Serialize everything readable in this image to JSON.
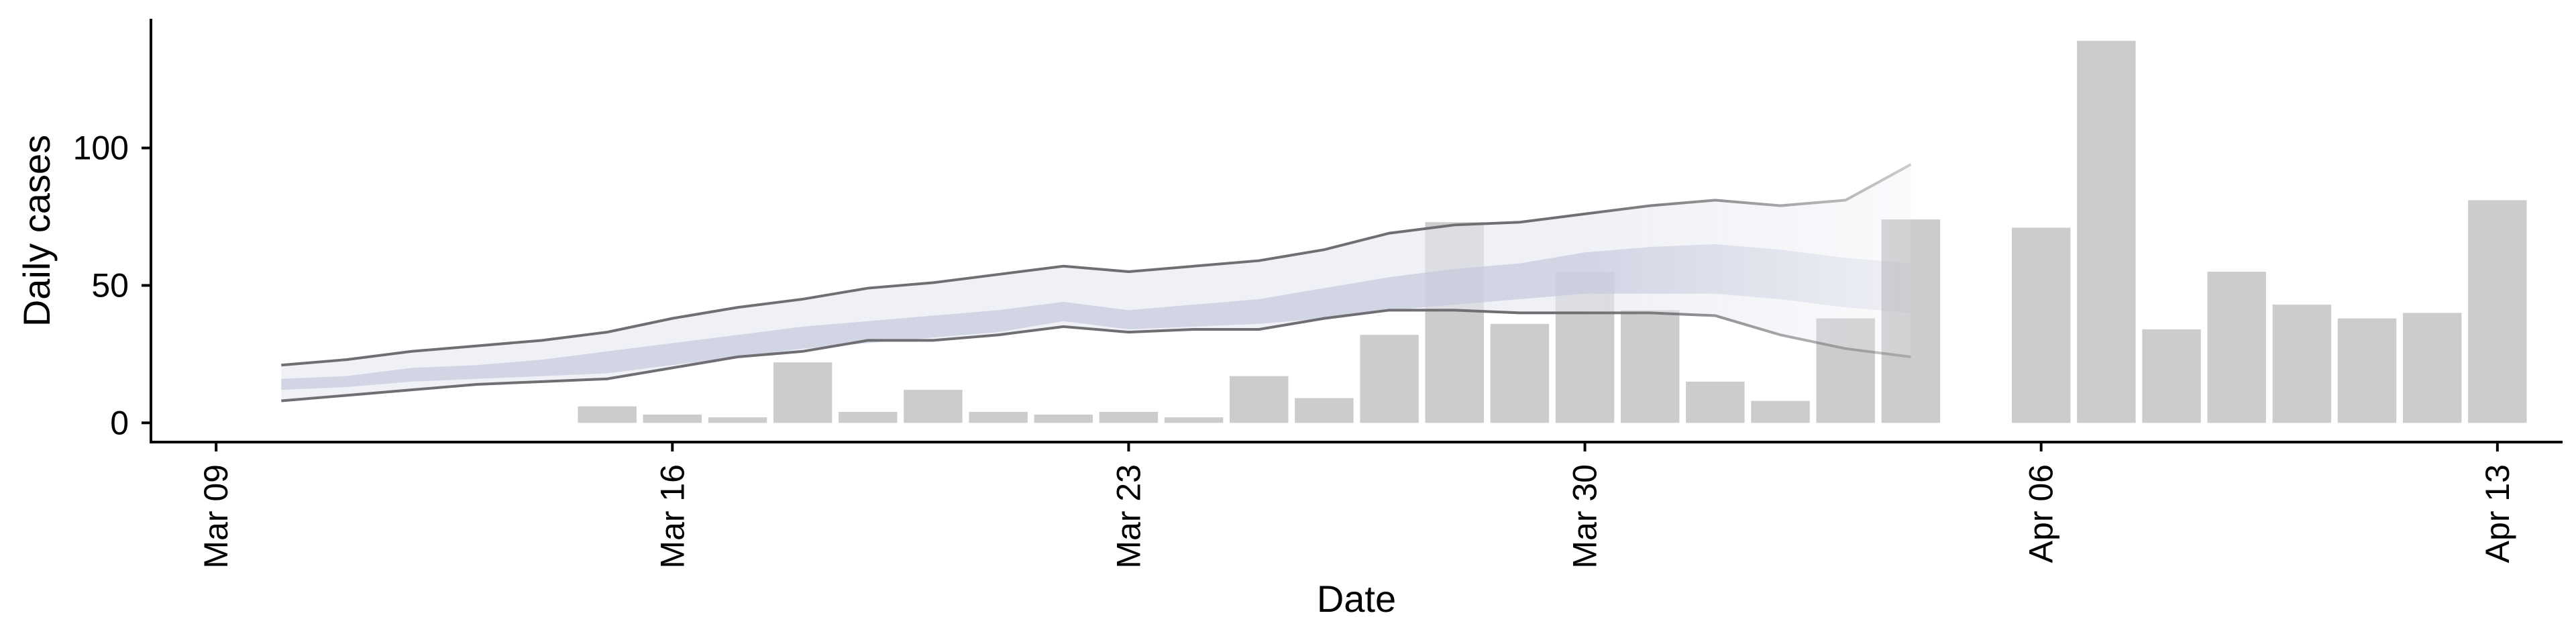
{
  "chart_data": {
    "type": "bar",
    "title": "",
    "xlabel": "Date",
    "ylabel": "Daily cases",
    "x_axis": {
      "type": "date",
      "range": [
        "2020-03-08",
        "2020-04-14"
      ],
      "ticks": [
        {
          "date": "2020-03-09",
          "label": "Mar 09"
        },
        {
          "date": "2020-03-16",
          "label": "Mar 16"
        },
        {
          "date": "2020-03-23",
          "label": "Mar 23"
        },
        {
          "date": "2020-03-30",
          "label": "Mar 30"
        },
        {
          "date": "2020-04-06",
          "label": "Apr 06"
        },
        {
          "date": "2020-04-13",
          "label": "Apr 13"
        }
      ]
    },
    "y_axis": {
      "range": [
        -7,
        147
      ],
      "ticks": [
        0,
        50,
        100
      ]
    },
    "grid": false,
    "legend": "none",
    "bars": {
      "color": "#cccccc",
      "points": [
        {
          "date": "2020-03-15",
          "value": 6
        },
        {
          "date": "2020-03-16",
          "value": 3
        },
        {
          "date": "2020-03-17",
          "value": 2
        },
        {
          "date": "2020-03-18",
          "value": 22
        },
        {
          "date": "2020-03-19",
          "value": 4
        },
        {
          "date": "2020-03-20",
          "value": 12
        },
        {
          "date": "2020-03-21",
          "value": 4
        },
        {
          "date": "2020-03-22",
          "value": 3
        },
        {
          "date": "2020-03-23",
          "value": 4
        },
        {
          "date": "2020-03-24",
          "value": 2
        },
        {
          "date": "2020-03-25",
          "value": 17
        },
        {
          "date": "2020-03-26",
          "value": 9
        },
        {
          "date": "2020-03-27",
          "value": 32
        },
        {
          "date": "2020-03-28",
          "value": 73
        },
        {
          "date": "2020-03-29",
          "value": 36
        },
        {
          "date": "2020-03-30",
          "value": 55
        },
        {
          "date": "2020-03-31",
          "value": 41
        },
        {
          "date": "2020-04-01",
          "value": 15
        },
        {
          "date": "2020-04-02",
          "value": 8
        },
        {
          "date": "2020-04-03",
          "value": 38
        },
        {
          "date": "2020-04-04",
          "value": 74
        },
        {
          "date": "2020-04-06",
          "value": 71
        },
        {
          "date": "2020-04-07",
          "value": 139
        },
        {
          "date": "2020-04-08",
          "value": 34
        },
        {
          "date": "2020-04-09",
          "value": 55
        },
        {
          "date": "2020-04-10",
          "value": 43
        },
        {
          "date": "2020-04-11",
          "value": 38
        },
        {
          "date": "2020-04-12",
          "value": 40
        },
        {
          "date": "2020-04-13",
          "value": 81
        }
      ]
    },
    "estimate": {
      "dates": [
        "2020-03-10",
        "2020-03-11",
        "2020-03-12",
        "2020-03-13",
        "2020-03-14",
        "2020-03-15",
        "2020-03-16",
        "2020-03-17",
        "2020-03-18",
        "2020-03-19",
        "2020-03-20",
        "2020-03-21",
        "2020-03-22",
        "2020-03-23",
        "2020-03-24",
        "2020-03-25",
        "2020-03-26",
        "2020-03-27",
        "2020-03-28",
        "2020-03-29",
        "2020-03-30",
        "2020-03-31",
        "2020-04-01",
        "2020-04-02",
        "2020-04-03",
        "2020-04-04"
      ],
      "upper_90": [
        21,
        23,
        26,
        28,
        30,
        33,
        38,
        42,
        45,
        49,
        51,
        54,
        57,
        55,
        57,
        59,
        63,
        69,
        72,
        73,
        76,
        79,
        81,
        79,
        81,
        94
      ],
      "upper_50": [
        16,
        17,
        20,
        21,
        23,
        26,
        29,
        32,
        35,
        37,
        39,
        41,
        44,
        41,
        43,
        45,
        49,
        53,
        56,
        58,
        62,
        64,
        65,
        63,
        60,
        58
      ],
      "lower_50": [
        12,
        13,
        15,
        16,
        17,
        18,
        21,
        24,
        27,
        29,
        31,
        33,
        37,
        34,
        35,
        36,
        38,
        41,
        43,
        45,
        47,
        47,
        47,
        45,
        42,
        40
      ],
      "lower_90": [
        8,
        10,
        12,
        14,
        15,
        16,
        20,
        24,
        26,
        30,
        30,
        32,
        35,
        33,
        34,
        34,
        38,
        41,
        41,
        40,
        40,
        40,
        39,
        32,
        27,
        24
      ],
      "fade_from_date": "2020-03-30",
      "outer_band_color": "#e7e9f1",
      "inner_band_color": "#c4c9dd",
      "bound_line_color": "#6f6f73"
    }
  }
}
